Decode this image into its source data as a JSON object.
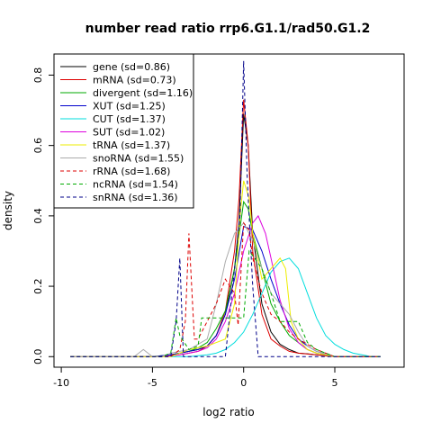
{
  "chart_data": {
    "type": "line",
    "title": "number read ratio rrp6.G1.1/rad50.G1.2",
    "xlabel": "log2 ratio",
    "ylabel": "density",
    "xlim": [
      -10.4,
      8.8
    ],
    "ylim": [
      -0.03,
      0.86
    ],
    "xticks": [
      -10,
      -5,
      0,
      5
    ],
    "yticks": [
      0.0,
      0.2,
      0.4,
      0.6,
      0.8
    ],
    "xtick_labels": [
      "-10",
      "-5",
      "0",
      "5"
    ],
    "ytick_labels": [
      "0.0",
      "0.2",
      "0.4",
      "0.6",
      "0.8"
    ],
    "grid": false,
    "legend_position": "top-left",
    "series": [
      {
        "name": "gene (sd=0.86)",
        "color": "#000000",
        "dash": "solid",
        "x": [
          -9.5,
          -4.5,
          -4,
          -3.5,
          -3,
          -2.5,
          -2,
          -1.5,
          -1,
          -0.5,
          -0.25,
          0,
          0.25,
          0.5,
          1,
          1.5,
          2,
          2.5,
          3,
          3.5,
          4,
          5,
          7.5
        ],
        "y": [
          0,
          0,
          0.005,
          0.01,
          0.015,
          0.02,
          0.03,
          0.06,
          0.12,
          0.25,
          0.38,
          0.69,
          0.6,
          0.35,
          0.15,
          0.07,
          0.035,
          0.02,
          0.01,
          0.008,
          0.005,
          0,
          0
        ]
      },
      {
        "name": "mRNA (sd=0.73)",
        "color": "#dd0000",
        "dash": "solid",
        "x": [
          -9.5,
          -4.5,
          -3.5,
          -3,
          -2.5,
          -2,
          -1.5,
          -1,
          -0.5,
          -0.25,
          0,
          0.25,
          0.5,
          1,
          1.5,
          2,
          2.5,
          3,
          4,
          5,
          7.5
        ],
        "y": [
          0,
          0,
          0.005,
          0.01,
          0.015,
          0.03,
          0.06,
          0.13,
          0.3,
          0.45,
          0.73,
          0.6,
          0.3,
          0.12,
          0.05,
          0.03,
          0.015,
          0.01,
          0.005,
          0,
          0
        ]
      },
      {
        "name": "divergent (sd=1.16)",
        "color": "#00aa00",
        "dash": "solid",
        "x": [
          -9.5,
          -5,
          -4,
          -3.5,
          -3,
          -2.5,
          -2,
          -1.5,
          -1,
          -0.5,
          0,
          0.25,
          0.5,
          1,
          1.5,
          2,
          2.5,
          3,
          3.5,
          4,
          5,
          7.5
        ],
        "y": [
          0,
          0,
          0.005,
          0.01,
          0.015,
          0.025,
          0.04,
          0.08,
          0.13,
          0.25,
          0.44,
          0.42,
          0.35,
          0.25,
          0.15,
          0.1,
          0.06,
          0.04,
          0.02,
          0.01,
          0,
          0
        ]
      },
      {
        "name": "XUT (sd=1.25)",
        "color": "#0000cc",
        "dash": "solid",
        "x": [
          -9.5,
          -5,
          -4,
          -3.5,
          -3,
          -2.5,
          -2,
          -1.5,
          -1,
          -0.5,
          0,
          0.5,
          1,
          1.5,
          2,
          2.5,
          3,
          3.5,
          4,
          5,
          7.5
        ],
        "y": [
          0,
          0,
          0.005,
          0.01,
          0.015,
          0.02,
          0.03,
          0.06,
          0.12,
          0.22,
          0.37,
          0.36,
          0.3,
          0.22,
          0.15,
          0.09,
          0.05,
          0.03,
          0.015,
          0,
          0
        ]
      },
      {
        "name": "CUT (sd=1.37)",
        "color": "#00dddd",
        "dash": "solid",
        "x": [
          -9.5,
          -3,
          -2,
          -1.5,
          -1,
          -0.5,
          0,
          0.5,
          1,
          1.5,
          2,
          2.5,
          3,
          3.5,
          4,
          4.5,
          5,
          5.5,
          6,
          6.5,
          7,
          7.5
        ],
        "y": [
          0,
          0,
          0.005,
          0.01,
          0.02,
          0.04,
          0.07,
          0.12,
          0.18,
          0.24,
          0.27,
          0.28,
          0.25,
          0.18,
          0.11,
          0.06,
          0.035,
          0.02,
          0.01,
          0.005,
          0,
          0
        ]
      },
      {
        "name": "SUT (sd=1.02)",
        "color": "#dd00dd",
        "dash": "solid",
        "x": [
          -9.5,
          -4.5,
          -3.5,
          -3,
          -2.5,
          -2,
          -1.5,
          -1,
          -0.5,
          0,
          0.5,
          0.8,
          1.2,
          1.5,
          2,
          2.5,
          3,
          3.5,
          4,
          5,
          7.5
        ],
        "y": [
          0,
          0,
          0.005,
          0.01,
          0.015,
          0.025,
          0.05,
          0.1,
          0.18,
          0.3,
          0.38,
          0.4,
          0.35,
          0.28,
          0.16,
          0.08,
          0.04,
          0.02,
          0.01,
          0,
          0
        ]
      },
      {
        "name": "tRNA (sd=1.37)",
        "color": "#eeee00",
        "dash": "solid",
        "x": [
          -9.5,
          -4,
          -3.5,
          -3,
          -2,
          -1,
          -0.5,
          -0.2,
          0,
          0.3,
          0.5,
          1,
          1.5,
          2,
          2.3,
          2.6,
          3,
          3.5,
          4,
          5,
          7.5
        ],
        "y": [
          0,
          0,
          0.01,
          0.02,
          0.03,
          0.05,
          0.15,
          0.4,
          0.5,
          0.45,
          0.35,
          0.22,
          0.25,
          0.28,
          0.25,
          0.1,
          0.05,
          0.02,
          0.01,
          0,
          0
        ]
      },
      {
        "name": "snoRNA (sd=1.55)",
        "color": "#aaaaaa",
        "dash": "solid",
        "x": [
          -9.5,
          -6,
          -5.5,
          -5,
          -4.5,
          -4,
          -3,
          -2,
          -1.5,
          -1,
          -0.5,
          0,
          0.5,
          1,
          1.5,
          2,
          2.5,
          3,
          3.5,
          4,
          5,
          7.5
        ],
        "y": [
          0,
          0,
          0.02,
          0,
          0,
          0.01,
          0.02,
          0.05,
          0.15,
          0.27,
          0.35,
          0.38,
          0.33,
          0.25,
          0.18,
          0.15,
          0.12,
          0.07,
          0.03,
          0.015,
          0,
          0
        ]
      },
      {
        "name": "rRNA (sd=1.68)",
        "color": "#dd0000",
        "dash": "dashed",
        "x": [
          -9.5,
          -4,
          -3.5,
          -3.2,
          -3,
          -2.7,
          -2.5,
          -2,
          -1.5,
          -1,
          -0.5,
          -0.3,
          0,
          0.3,
          0.5,
          1,
          1.5,
          2,
          2.5,
          3,
          4,
          5,
          7.5
        ],
        "y": [
          0,
          0,
          0.02,
          0.1,
          0.35,
          0.05,
          0.05,
          0.1,
          0.15,
          0.22,
          0.18,
          0.09,
          0.38,
          0.36,
          0.28,
          0.18,
          0.12,
          0.1,
          0.07,
          0.05,
          0.02,
          0,
          0
        ]
      },
      {
        "name": "ncRNA (sd=1.54)",
        "color": "#00aa00",
        "dash": "dashed",
        "x": [
          -9.5,
          -4.5,
          -4,
          -3.7,
          -3.5,
          -3,
          -2.5,
          -2.3,
          -1,
          0,
          0.3,
          0.6,
          1,
          1.5,
          2,
          2.5,
          3,
          3.5,
          4,
          5,
          7.5
        ],
        "y": [
          0,
          0,
          0.01,
          0.11,
          0.06,
          0.02,
          0.03,
          0.11,
          0.11,
          0.11,
          0.3,
          0.28,
          0.25,
          0.18,
          0.1,
          0.1,
          0.1,
          0.04,
          0.02,
          0,
          0
        ]
      },
      {
        "name": "snRNA (sd=1.36)",
        "color": "#000088",
        "dash": "dashed",
        "x": [
          -9.5,
          -4,
          -3.7,
          -3.5,
          -3.3,
          -1,
          -0.8,
          -0.5,
          -0.2,
          0,
          0.2,
          0.5,
          0.8,
          7.5
        ],
        "y": [
          0,
          0,
          0.1,
          0.28,
          0,
          0,
          0.1,
          0.25,
          0.4,
          0.84,
          0.5,
          0.2,
          0,
          0
        ]
      }
    ]
  }
}
